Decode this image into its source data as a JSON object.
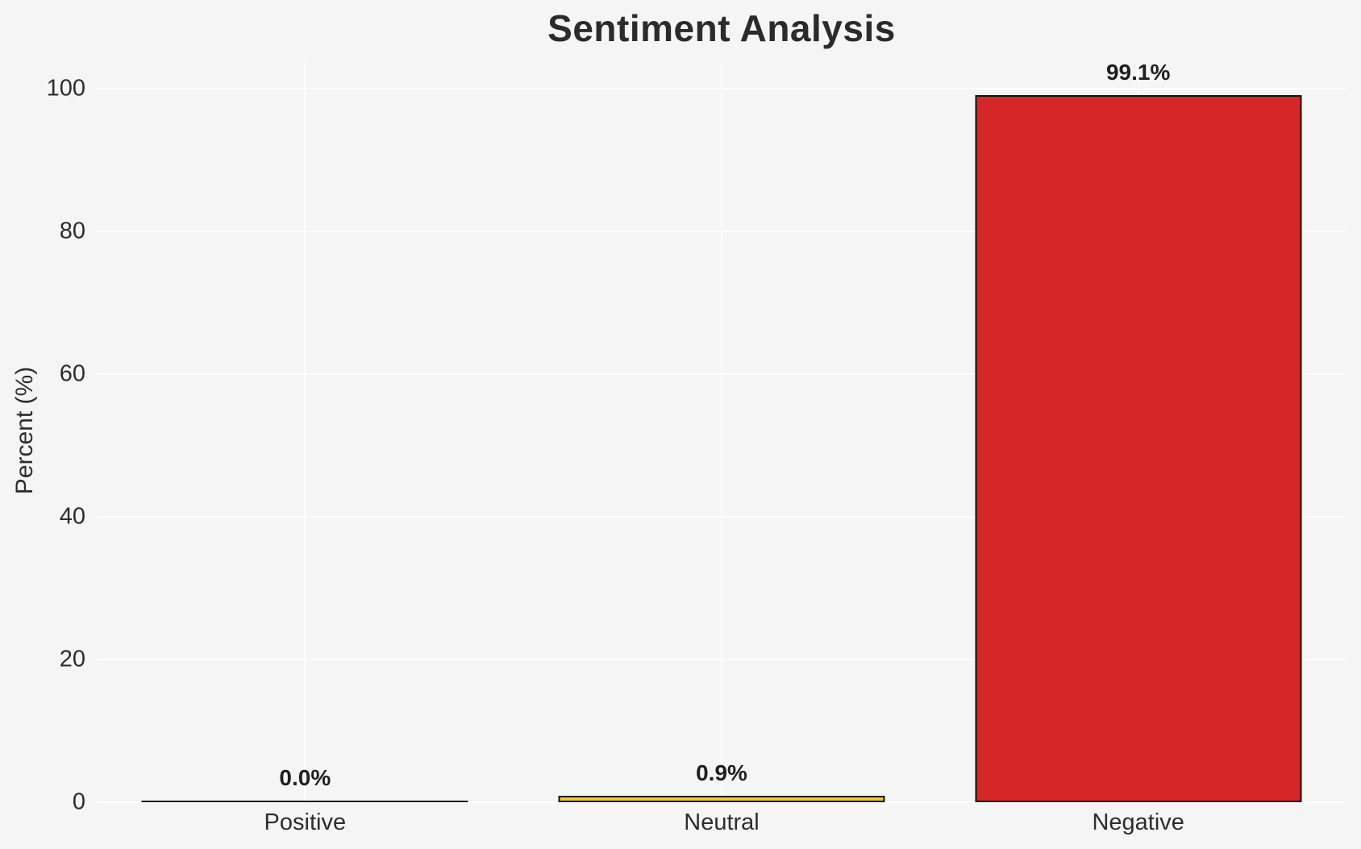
{
  "title": "Sentiment Analysis",
  "ylabel": "Percent (%)",
  "colors": {
    "background": "#f5f5f6",
    "grid": "#fdfdfd",
    "text": "#2d2d2d",
    "bar_edge": "#111111",
    "neutral_bar": "#f1c832",
    "negative_bar": "#d62728"
  },
  "chart_data": {
    "type": "bar",
    "title": "Sentiment Analysis",
    "xlabel": "",
    "ylabel": "Percent (%)",
    "categories": [
      "Positive",
      "Neutral",
      "Negative"
    ],
    "values": [
      0.0,
      0.9,
      99.1
    ],
    "value_labels": [
      "0.0%",
      "0.9%",
      "99.1%"
    ],
    "bar_colors": [
      null,
      "#f1c832",
      "#d62728"
    ],
    "ylim": [
      0,
      104
    ],
    "yticks": [
      0,
      20,
      40,
      60,
      80,
      100
    ],
    "grid": "both",
    "legend": "none"
  }
}
